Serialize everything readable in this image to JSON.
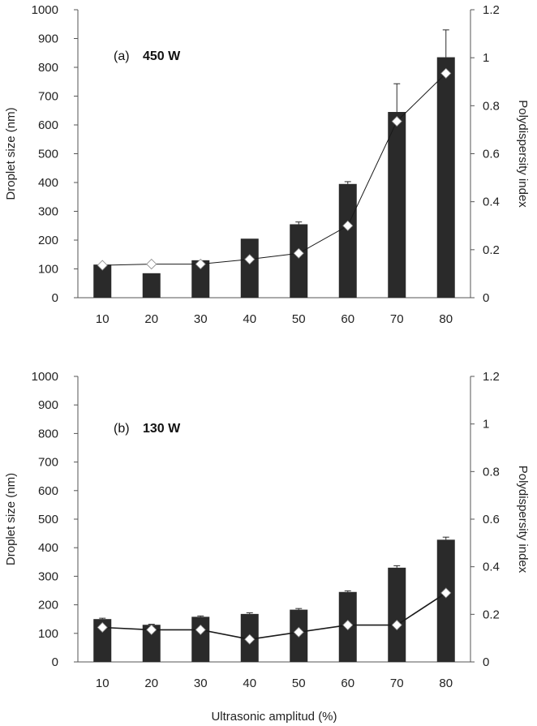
{
  "chart_data": [
    {
      "type": "bar",
      "panel_label": "(a)",
      "title": "450 W",
      "categories": [
        "10",
        "20",
        "30",
        "40",
        "50",
        "60",
        "70",
        "80"
      ],
      "series": [
        {
          "name": "Droplet size",
          "axis": "left",
          "kind": "bar",
          "values": [
            115,
            85,
            130,
            205,
            255,
            395,
            645,
            835
          ],
          "errors": [
            0,
            0,
            0,
            0,
            8,
            8,
            98,
            95
          ]
        },
        {
          "name": "Polydispersity index",
          "axis": "right",
          "kind": "line",
          "values": [
            0.135,
            0.14,
            0.14,
            0.16,
            0.185,
            0.3,
            0.735,
            0.935
          ]
        }
      ],
      "ylabel": "Droplet size (nm)",
      "y2label": "Polydispersity index",
      "ylim": [
        0,
        1000
      ],
      "y2lim": [
        0,
        1.2
      ],
      "yticks": [
        "0",
        "100",
        "200",
        "300",
        "400",
        "500",
        "600",
        "700",
        "800",
        "900",
        "1000"
      ],
      "y2ticks": [
        "0",
        "0.2",
        "0.4",
        "0.6",
        "0.8",
        "1",
        "1.2"
      ]
    },
    {
      "type": "bar",
      "panel_label": "(b)",
      "title": "130 W",
      "categories": [
        "10",
        "20",
        "30",
        "40",
        "50",
        "60",
        "70",
        "80"
      ],
      "series": [
        {
          "name": "Droplet size",
          "axis": "left",
          "kind": "bar",
          "values": [
            150,
            130,
            158,
            168,
            183,
            245,
            330,
            428
          ],
          "errors": [
            3,
            2,
            3,
            4,
            4,
            4,
            7,
            9
          ]
        },
        {
          "name": "Polydispersity index",
          "axis": "right",
          "kind": "line",
          "values": [
            0.145,
            0.135,
            0.135,
            0.095,
            0.125,
            0.155,
            0.155,
            0.29
          ]
        }
      ],
      "ylabel": "Droplet size (nm)",
      "y2label": "Polydispersity index",
      "xlabel": "Ultrasonic amplitud (%)",
      "ylim": [
        0,
        1000
      ],
      "y2lim": [
        0,
        1.2
      ],
      "yticks": [
        "0",
        "100",
        "200",
        "300",
        "400",
        "500",
        "600",
        "700",
        "800",
        "900",
        "1000"
      ],
      "y2ticks": [
        "0",
        "0.2",
        "0.4",
        "0.6",
        "0.8",
        "1",
        "1.2"
      ]
    }
  ],
  "colors": {
    "bar": "#2a2a2a",
    "line": "#1a1a1a",
    "marker_fill": "#ffffff",
    "axis": "#555555"
  }
}
